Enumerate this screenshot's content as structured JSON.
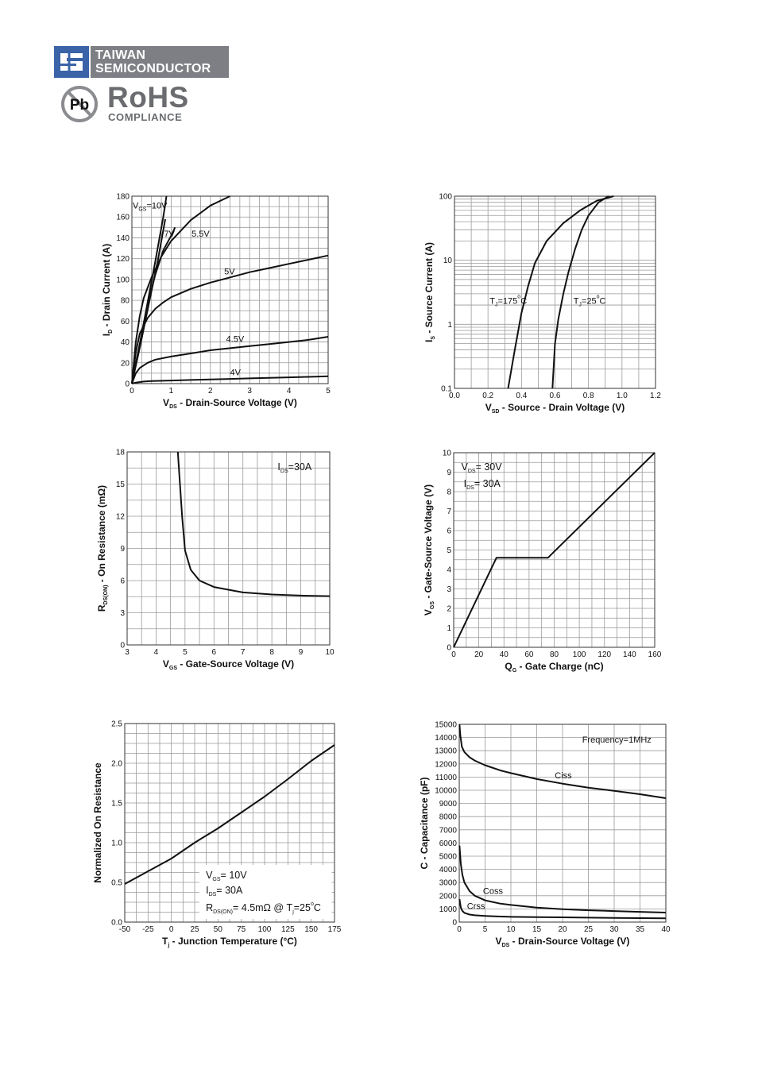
{
  "header": {
    "brand_line1": "TAIWAN",
    "brand_line2": "SEMICONDUCTOR",
    "pb": "Pb",
    "rohs": "RoHS",
    "compliance": "COMPLIANCE"
  },
  "chart_data": [
    {
      "type": "line",
      "xlabel": [
        "V",
        "DS",
        " - Drain-Source Voltage (V)"
      ],
      "ylabel": [
        "I",
        "D",
        " - Drain Current (A)"
      ],
      "xlim": [
        0,
        5
      ],
      "ylim": [
        0,
        180
      ],
      "xticks": [
        0,
        1,
        2,
        3,
        4,
        5
      ],
      "xtick_labels": [
        "0",
        "1",
        "2",
        "3",
        "4",
        "5"
      ],
      "yticks": [
        0,
        20,
        40,
        60,
        80,
        100,
        120,
        140,
        160,
        180
      ],
      "ytick_labels": [
        "0",
        "20",
        "40",
        "60",
        "80",
        "100",
        "120",
        "140",
        "160",
        "180"
      ],
      "grid_minor_x": 0.25,
      "grid_minor_y": 10,
      "grid": true,
      "series": [
        {
          "name": "VGS=10V",
          "x": [
            0,
            0.2,
            0.4,
            0.6,
            0.8,
            0.88
          ],
          "y": [
            0,
            38,
            78,
            118,
            160,
            180
          ]
        },
        {
          "name": "VGS=10V (2)",
          "x": [
            0,
            0.22,
            0.44,
            0.66,
            0.85
          ],
          "y": [
            0,
            38,
            78,
            118,
            158
          ]
        },
        {
          "name": "7V",
          "x": [
            0,
            0.2,
            0.4,
            0.6,
            0.8,
            1.0,
            1.1
          ],
          "y": [
            0,
            38,
            76,
            105,
            128,
            142,
            150
          ]
        },
        {
          "name": "5.5V",
          "x": [
            0,
            0.1,
            0.2,
            0.3,
            0.5,
            0.75,
            1.0,
            1.5,
            2.0,
            2.5
          ],
          "y": [
            0,
            40,
            65,
            82,
            102,
            122,
            137,
            157,
            171,
            180
          ]
        },
        {
          "name": "5V",
          "x": [
            0,
            0.1,
            0.2,
            0.4,
            0.6,
            0.8,
            1.0,
            1.5,
            2.0,
            2.5,
            3.0,
            3.5,
            4.0,
            4.5,
            5.0
          ],
          "y": [
            0,
            30,
            48,
            63,
            72,
            78,
            83,
            91,
            97,
            102,
            107,
            111,
            115,
            119,
            123
          ]
        },
        {
          "name": "4.5V",
          "x": [
            0,
            0.1,
            0.2,
            0.4,
            0.6,
            1.0,
            1.5,
            2.0,
            2.5,
            3.0,
            3.5,
            4.0,
            4.5,
            5.0
          ],
          "y": [
            0,
            10,
            15,
            20,
            23,
            26,
            29,
            32,
            34,
            36,
            38,
            40,
            42,
            45
          ]
        },
        {
          "name": "4V",
          "x": [
            0,
            0.1,
            0.3,
            0.5,
            1.0,
            1.5,
            2.0,
            2.5,
            3.0,
            3.5,
            4.0,
            4.5,
            5.0
          ],
          "y": [
            0,
            1,
            2,
            2.5,
            3,
            3.5,
            4,
            4.5,
            5,
            5.5,
            6,
            6.5,
            7
          ]
        }
      ],
      "annotations": [
        {
          "parts": [
            "V",
            "GS",
            "=10V"
          ],
          "x": 0.02,
          "y": 168
        },
        {
          "parts": [
            "7V"
          ],
          "x": 0.82,
          "y": 141
        },
        {
          "parts": [
            "5.5V"
          ],
          "x": 1.52,
          "y": 141
        },
        {
          "parts": [
            "5V"
          ],
          "x": 2.35,
          "y": 105
        },
        {
          "parts": [
            "4.5V"
          ],
          "x": 2.4,
          "y": 40
        },
        {
          "parts": [
            "4V"
          ],
          "x": 2.5,
          "y": 8
        }
      ]
    },
    {
      "type": "line",
      "xlabel": [
        "V",
        "SD",
        " - Source - Drain Voltage (V)"
      ],
      "ylabel": [
        "I",
        "S",
        " - Source Current (A)"
      ],
      "xscale": "linear",
      "yscale": "log",
      "xlim": [
        0,
        1.2
      ],
      "ylim": [
        0.1,
        100
      ],
      "xticks": [
        0,
        0.2,
        0.4,
        0.6,
        0.8,
        1.0,
        1.2
      ],
      "xtick_labels": [
        "0.0",
        "0.2",
        "0.4",
        "0.6",
        "0.8",
        "1.0",
        "1.2"
      ],
      "yticks": [
        0.1,
        1,
        10,
        100
      ],
      "ytick_labels": [
        "0.1",
        "1",
        "10",
        "100"
      ],
      "grid_minor_x": 0.1,
      "grid": true,
      "series": [
        {
          "name": "TJ=175°C",
          "x": [
            0.32,
            0.36,
            0.4,
            0.44,
            0.48,
            0.55,
            0.65,
            0.75,
            0.85,
            0.95
          ],
          "y": [
            0.1,
            0.4,
            1.5,
            4,
            9,
            20,
            38,
            60,
            85,
            100
          ]
        },
        {
          "name": "TJ=25°C",
          "x": [
            0.585,
            0.6,
            0.62,
            0.65,
            0.68,
            0.72,
            0.76,
            0.8,
            0.86,
            0.92
          ],
          "y": [
            0.1,
            0.5,
            1.2,
            3,
            6.5,
            15,
            30,
            50,
            80,
            100
          ]
        }
      ],
      "annotations": [
        {
          "parts": [
            "T",
            "J",
            "=175",
            "o",
            "C"
          ],
          "x": 0.21,
          "y": 2.1
        },
        {
          "parts": [
            "T",
            "J",
            "=25",
            "o",
            "C"
          ],
          "x": 0.71,
          "y": 2.1
        }
      ]
    },
    {
      "type": "line",
      "xlabel": [
        "V",
        "GS",
        " - Gate-Source Voltage (V)"
      ],
      "ylabel": [
        "R",
        "DS(ON)",
        " - On Resistance (mΩ)"
      ],
      "xlim": [
        3,
        10
      ],
      "ylim": [
        0,
        18
      ],
      "xticks": [
        3,
        4,
        5,
        6,
        7,
        8,
        9,
        10
      ],
      "xtick_labels": [
        "3",
        "4",
        "5",
        "6",
        "7",
        "8",
        "9",
        "10"
      ],
      "yticks": [
        0,
        3,
        6,
        9,
        12,
        15,
        18
      ],
      "ytick_labels": [
        "0",
        "3",
        "6",
        "9",
        "12",
        "15",
        "18"
      ],
      "grid_minor_x": 0.5,
      "grid_minor_y": 1.5,
      "grid": true,
      "series": [
        {
          "name": "RDS(ON)",
          "x": [
            4.75,
            4.8,
            4.9,
            5.0,
            5.2,
            5.5,
            6.0,
            7.0,
            8.0,
            9.0,
            10.0
          ],
          "y": [
            18,
            16,
            12,
            8.8,
            7.0,
            6.0,
            5.4,
            4.9,
            4.7,
            4.6,
            4.55
          ]
        }
      ],
      "annotations": [
        {
          "parts": [
            "I",
            "DS",
            "=30A"
          ],
          "x": 8.2,
          "y": 16.3
        }
      ]
    },
    {
      "type": "line",
      "xlabel": [
        "Q",
        "G",
        " - Gate Charge (nC)"
      ],
      "ylabel": [
        "V",
        "GS",
        " - Gate-Source Voltage (V)"
      ],
      "xlim": [
        0,
        160
      ],
      "ylim": [
        0,
        10
      ],
      "xticks": [
        0,
        20,
        40,
        60,
        80,
        100,
        120,
        140,
        160
      ],
      "xtick_labels": [
        "0",
        "20",
        "40",
        "60",
        "80",
        "100",
        "120",
        "140",
        "160"
      ],
      "yticks": [
        0,
        1,
        2,
        3,
        4,
        5,
        6,
        7,
        8,
        9,
        10
      ],
      "ytick_labels": [
        "0",
        "1",
        "2",
        "3",
        "4",
        "5",
        "6",
        "7",
        "8",
        "9",
        "10"
      ],
      "grid_minor_x": 10,
      "grid_minor_y": 0.5,
      "grid": true,
      "series": [
        {
          "name": "VGS",
          "x": [
            0,
            34,
            75,
            160
          ],
          "y": [
            0,
            4.6,
            4.6,
            10
          ]
        }
      ],
      "annotations": [
        {
          "parts": [
            "V",
            "DS",
            "= 30V"
          ],
          "x": 6,
          "y": 9.1
        },
        {
          "parts": [
            "I",
            "DS",
            "= 30A"
          ],
          "x": 8,
          "y": 8.25
        }
      ]
    },
    {
      "type": "line",
      "xlabel": [
        "T",
        "j",
        " - Junction Temperature (°C)"
      ],
      "ylabel": [
        "Normalized On Resistance"
      ],
      "xlim": [
        -50,
        175
      ],
      "ylim": [
        0,
        2.5
      ],
      "xticks": [
        -50,
        -25,
        0,
        25,
        50,
        75,
        100,
        125,
        150,
        175
      ],
      "xtick_labels": [
        "-50",
        "-25",
        "0",
        "25",
        "50",
        "75",
        "100",
        "125",
        "150",
        "175"
      ],
      "yticks": [
        0,
        0.5,
        1.0,
        1.5,
        2.0,
        2.5
      ],
      "ytick_labels": [
        "0.0",
        "0.5",
        "1.0",
        "1.5",
        "2.0",
        "2.5"
      ],
      "grid_minor_x": 12.5,
      "grid_minor_y": 0.125,
      "grid": true,
      "series": [
        {
          "name": "Normalized RDS(ON)",
          "x": [
            -50,
            0,
            25,
            50,
            75,
            100,
            125,
            150,
            175
          ],
          "y": [
            0.48,
            0.8,
            1.0,
            1.18,
            1.38,
            1.58,
            1.8,
            2.03,
            2.23
          ]
        }
      ],
      "legend_box": {
        "x0": 30,
        "x1": 172,
        "y0": 0.04,
        "y1": 0.72
      },
      "annotations": [
        {
          "parts": [
            "V",
            "GS",
            "= 10V"
          ],
          "x": 37,
          "y": 0.55
        },
        {
          "parts": [
            "I",
            "DS",
            "= 30A"
          ],
          "x": 37,
          "y": 0.36
        },
        {
          "parts": [
            "R",
            "DS(ON)",
            "= 4.5mΩ @ T",
            "j",
            "=25",
            "o",
            "C"
          ],
          "x": 37,
          "y": 0.14
        }
      ]
    },
    {
      "type": "line",
      "xlabel": [
        "V",
        "DS",
        " - Drain-Source Voltage (V)"
      ],
      "ylabel": [
        "C - Capacitance (pF)"
      ],
      "xlim": [
        0,
        40
      ],
      "ylim": [
        0,
        15000
      ],
      "xticks": [
        0,
        5,
        10,
        15,
        20,
        25,
        30,
        35,
        40
      ],
      "xtick_labels": [
        "0",
        "5",
        "10",
        "15",
        "20",
        "25",
        "30",
        "35",
        "40"
      ],
      "yticks": [
        0,
        1000,
        2000,
        3000,
        4000,
        5000,
        6000,
        7000,
        8000,
        9000,
        10000,
        11000,
        12000,
        13000,
        14000,
        15000
      ],
      "ytick_labels": [
        "0",
        "1000",
        "2000",
        "3000",
        "4000",
        "5000",
        "6000",
        "7000",
        "8000",
        "9000",
        "10000",
        "11000",
        "12000",
        "13000",
        "14000",
        "15000"
      ],
      "grid": true,
      "series": [
        {
          "name": "Ciss",
          "x": [
            0.05,
            0.2,
            0.5,
            1,
            2,
            3,
            5,
            8,
            10,
            15,
            20,
            25,
            30,
            35,
            40
          ],
          "y": [
            15000,
            14200,
            13300,
            12900,
            12500,
            12250,
            11900,
            11500,
            11300,
            10850,
            10500,
            10200,
            9950,
            9700,
            9400
          ]
        },
        {
          "name": "Coss",
          "x": [
            0.05,
            0.3,
            0.6,
            1,
            2,
            3,
            5,
            8,
            10,
            15,
            20,
            25,
            30,
            35,
            40
          ],
          "y": [
            5800,
            4400,
            3600,
            3000,
            2350,
            2000,
            1650,
            1400,
            1300,
            1100,
            980,
            900,
            840,
            780,
            720
          ]
        },
        {
          "name": "Crss",
          "x": [
            0.05,
            0.3,
            0.6,
            1,
            2,
            3,
            5,
            8,
            10,
            15,
            20,
            25,
            30,
            35,
            40
          ],
          "y": [
            1750,
            1100,
            850,
            700,
            570,
            520,
            470,
            420,
            400,
            380,
            360,
            340,
            320,
            300,
            290
          ]
        }
      ],
      "annotations": [
        {
          "parts": [
            "Frequency=1MHz"
          ],
          "x": 23.8,
          "y": 13600
        },
        {
          "parts": [
            "Ciss"
          ],
          "x": 18.5,
          "y": 10900
        },
        {
          "parts": [
            "Coss"
          ],
          "x": 4.6,
          "y": 2150
        },
        {
          "parts": [
            "Crss"
          ],
          "x": 1.5,
          "y": 1000
        }
      ]
    }
  ]
}
